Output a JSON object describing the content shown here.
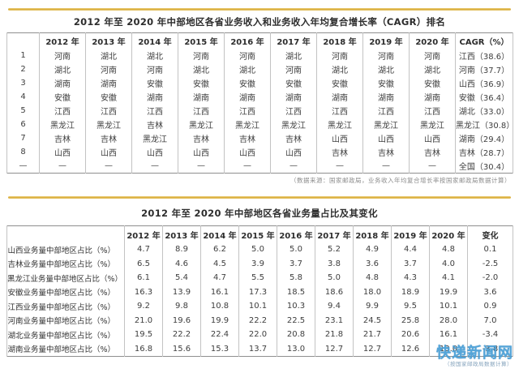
{
  "page": {
    "background": "#ffffff",
    "accent_color": "#d8ab38"
  },
  "table1": {
    "title": "2012 年至 2020 年中部地区各省业务收入和业务收入年均复合增长率（CAGR）排名",
    "headers": [
      "",
      "2012 年",
      "2013 年",
      "2014 年",
      "2015 年",
      "2016 年",
      "2017 年",
      "2018 年",
      "2019 年",
      "2020 年",
      "CAGR（%）"
    ],
    "rows": [
      [
        "1",
        "河南",
        "湖北",
        "湖北",
        "河南",
        "河南",
        "湖北",
        "河南",
        "河南",
        "河南",
        "江西（38.6）"
      ],
      [
        "2",
        "湖北",
        "河南",
        "河南",
        "湖北",
        "湖北",
        "河南",
        "湖北",
        "湖北",
        "湖北",
        "河南（37.7）"
      ],
      [
        "3",
        "湖南",
        "湖南",
        "安徽",
        "安徽",
        "安徽",
        "安徽",
        "安徽",
        "安徽",
        "安徽",
        "山西（36.9）"
      ],
      [
        "4",
        "安徽",
        "安徽",
        "湖南",
        "湖南",
        "湖南",
        "湖南",
        "湖南",
        "湖南",
        "湖南",
        "安徽（36.4）"
      ],
      [
        "5",
        "江西",
        "江西",
        "江西",
        "江西",
        "江西",
        "江西",
        "江西",
        "江西",
        "江西",
        "湖北（33.0）"
      ],
      [
        "6",
        "黑龙江",
        "黑龙江",
        "吉林",
        "黑龙江",
        "黑龙江",
        "黑龙江",
        "黑龙江",
        "黑龙江",
        "黑龙江",
        "黑龙江（30.8）"
      ],
      [
        "7",
        "吉林",
        "吉林",
        "黑龙江",
        "吉林",
        "吉林",
        "吉林",
        "山西",
        "山西",
        "山西",
        "湖南（29.4）"
      ],
      [
        "8",
        "山西",
        "山西",
        "山西",
        "山西",
        "山西",
        "山西",
        "吉林",
        "吉林",
        "吉林",
        "吉林（28.7）"
      ],
      [
        "—",
        "—",
        "—",
        "—",
        "—",
        "—",
        "—",
        "—",
        "—",
        "—",
        "全国（30.4）"
      ]
    ],
    "footnote": "（数据来源：国家邮政局，业务收入年均复合增长率按国家邮政局数据计算）"
  },
  "table2": {
    "title": "2012 年至 2020 年中部地区各省业务量占比及其变化",
    "headers": [
      "",
      "2012 年",
      "2013 年",
      "2014 年",
      "2015 年",
      "2016 年",
      "2017 年",
      "2018 年",
      "2019 年",
      "2020 年",
      "变化"
    ],
    "rows": [
      [
        "山西业务量中部地区占比（%）",
        "4.7",
        "8.9",
        "6.2",
        "5.0",
        "5.0",
        "5.2",
        "4.9",
        "4.4",
        "4.8",
        "0.1"
      ],
      [
        "吉林业务量中部地区占比（%）",
        "6.5",
        "4.6",
        "4.5",
        "3.9",
        "3.7",
        "3.8",
        "3.6",
        "3.7",
        "4.0",
        "-2.5"
      ],
      [
        "黑龙江业务量中部地区占比（%）",
        "6.1",
        "5.4",
        "4.7",
        "5.5",
        "5.8",
        "5.0",
        "4.8",
        "4.3",
        "4.1",
        "-2.0"
      ],
      [
        "安徽业务量中部地区占比（%）",
        "16.3",
        "13.9",
        "16.1",
        "17.3",
        "18.5",
        "18.6",
        "18.0",
        "18.9",
        "19.9",
        "3.6"
      ],
      [
        "江西业务量中部地区占比（%）",
        "9.2",
        "9.8",
        "10.8",
        "10.1",
        "10.3",
        "9.4",
        "9.9",
        "9.5",
        "10.1",
        "0.9"
      ],
      [
        "河南业务量中部地区占比（%）",
        "21.0",
        "19.6",
        "19.9",
        "22.2",
        "22.5",
        "23.1",
        "24.5",
        "25.8",
        "28.0",
        "7.0"
      ],
      [
        "湖北业务量中部地区占比（%）",
        "19.5",
        "22.2",
        "22.4",
        "22.0",
        "20.8",
        "21.8",
        "21.7",
        "20.6",
        "16.1",
        "-3.4"
      ],
      [
        "湖南业务量中部地区占比（%）",
        "16.8",
        "15.6",
        "15.3",
        "13.7",
        "13.0",
        "12.7",
        "12.7",
        "12.6",
        "13.0",
        "-3.8"
      ]
    ]
  },
  "watermark": {
    "text": "快递新闻网",
    "color": "#4ba1d8",
    "note": "（按国家邮政局数据计算）"
  }
}
